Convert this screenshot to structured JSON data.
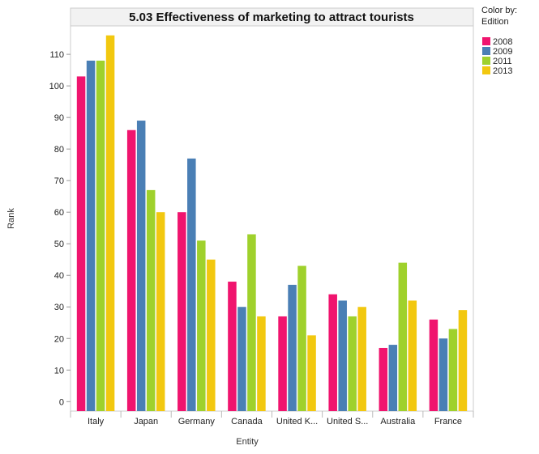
{
  "chart_data": {
    "type": "bar",
    "title": "5.03 Effectiveness of marketing to attract tourists",
    "xlabel": "Entity",
    "ylabel": "Rank",
    "ylim": [
      -3,
      119
    ],
    "yticks": [
      0,
      10,
      20,
      30,
      40,
      50,
      60,
      70,
      80,
      90,
      100,
      110
    ],
    "categories": [
      "Italy",
      "Japan",
      "Germany",
      "Canada",
      "United K...",
      "United S...",
      "Australia",
      "France"
    ],
    "series": [
      {
        "name": "2008",
        "color": "#f0146e",
        "values": [
          103,
          86,
          60,
          38,
          27,
          34,
          17,
          26
        ]
      },
      {
        "name": "2009",
        "color": "#4a7fb5",
        "values": [
          108,
          89,
          77,
          30,
          37,
          32,
          18,
          20
        ]
      },
      {
        "name": "2011",
        "color": "#9fd12c",
        "values": [
          108,
          67,
          51,
          53,
          43,
          27,
          44,
          23
        ]
      },
      {
        "name": "2013",
        "color": "#f2c80f",
        "values": [
          116,
          60,
          45,
          27,
          21,
          30,
          32,
          29
        ]
      }
    ],
    "legend": {
      "title_line1": "Color by:",
      "title_line2": "Edition",
      "position": "top-right"
    },
    "grid": false
  }
}
